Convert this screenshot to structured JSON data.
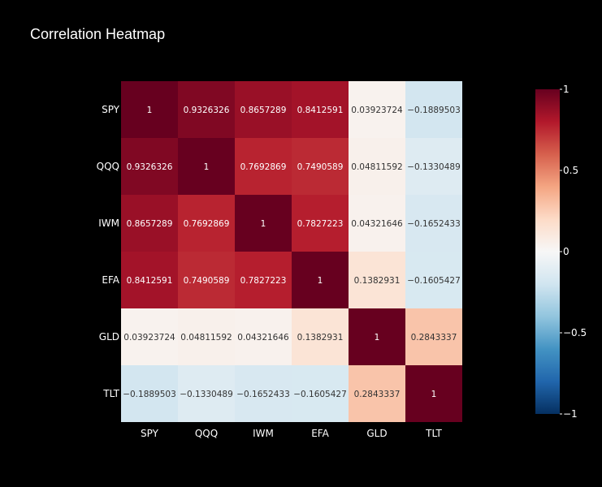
{
  "chart_data": {
    "type": "heatmap",
    "title": "Correlation Heatmap",
    "x_categories": [
      "SPY",
      "QQQ",
      "IWM",
      "EFA",
      "GLD",
      "TLT"
    ],
    "y_categories": [
      "SPY",
      "QQQ",
      "IWM",
      "EFA",
      "GLD",
      "TLT"
    ],
    "values": [
      [
        1,
        0.9326326,
        0.8657289,
        0.8412591,
        0.03923724,
        -0.1889503
      ],
      [
        0.9326326,
        1,
        0.7692869,
        0.7490589,
        0.04811592,
        -0.1330489
      ],
      [
        0.8657289,
        0.7692869,
        1,
        0.7827223,
        0.04321646,
        -0.1652433
      ],
      [
        0.8412591,
        0.7490589,
        0.7827223,
        1,
        0.1382931,
        -0.1605427
      ],
      [
        0.03923724,
        0.04811592,
        0.04321646,
        0.1382931,
        1,
        0.2843337
      ],
      [
        -0.1889503,
        -0.1330489,
        -0.1652433,
        -0.1605427,
        0.2843337,
        1
      ]
    ],
    "cell_labels": [
      [
        "1",
        "0.9326326",
        "0.8657289",
        "0.8412591",
        "0.03923724",
        "−0.1889503"
      ],
      [
        "0.9326326",
        "1",
        "0.7692869",
        "0.7490589",
        "0.04811592",
        "−0.1330489"
      ],
      [
        "0.8657289",
        "0.7692869",
        "1",
        "0.7827223",
        "0.04321646",
        "−0.1652433"
      ],
      [
        "0.8412591",
        "0.7490589",
        "0.7827223",
        "1",
        "0.1382931",
        "−0.1605427"
      ],
      [
        "0.03923724",
        "0.04811592",
        "0.04321646",
        "0.1382931",
        "1",
        "0.2843337"
      ],
      [
        "−0.1889503",
        "−0.1330489",
        "−0.1652433",
        "−0.1605427",
        "0.2843337",
        "1"
      ]
    ],
    "zmin": -1,
    "zmax": 1,
    "colorscale": "RdBu",
    "colorscale_stops": [
      [
        0,
        "#053061"
      ],
      [
        0.1,
        "#2166ac"
      ],
      [
        0.2,
        "#4393c3"
      ],
      [
        0.3,
        "#92c5de"
      ],
      [
        0.4,
        "#d1e5f0"
      ],
      [
        0.5,
        "#f7f7f7"
      ],
      [
        0.6,
        "#fddbc7"
      ],
      [
        0.7,
        "#f4a582"
      ],
      [
        0.8,
        "#d6604d"
      ],
      [
        0.9,
        "#b2182b"
      ],
      [
        1,
        "#67001f"
      ]
    ],
    "colorbar_ticks": [
      {
        "value": 1,
        "label": "1"
      },
      {
        "value": 0.5,
        "label": "0.5"
      },
      {
        "value": 0,
        "label": "0"
      },
      {
        "value": -0.5,
        "label": "−0.5"
      },
      {
        "value": -1,
        "label": "−1"
      }
    ],
    "legend": "colorbar-right"
  },
  "colors": {
    "background": "#000000",
    "text": "#ffffff"
  }
}
